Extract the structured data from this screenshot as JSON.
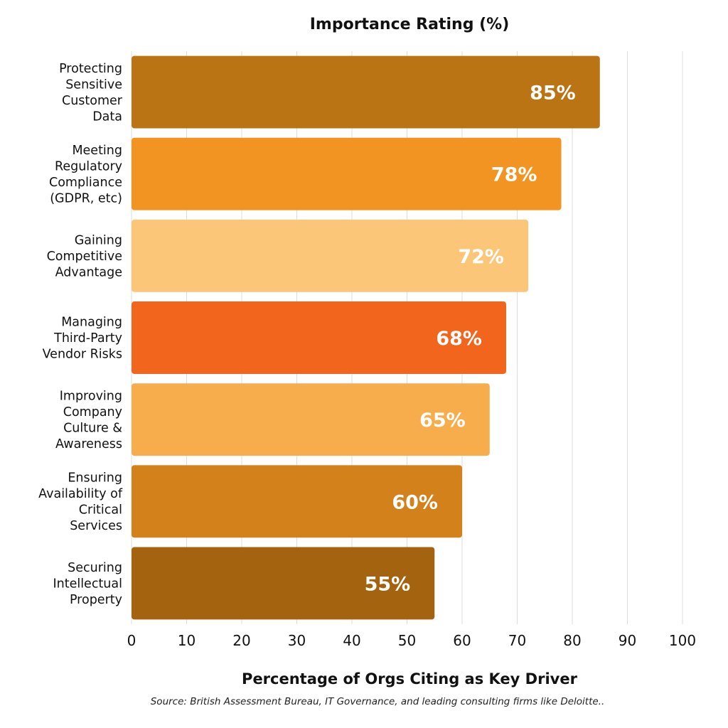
{
  "chart_data": {
    "type": "bar",
    "orientation": "horizontal",
    "title": "Importance Rating (%)",
    "xlabel": "Percentage of Orgs Citing as Key Driver",
    "ylabel": "",
    "xlim": [
      0,
      100
    ],
    "xticks": [
      0,
      10,
      20,
      30,
      40,
      50,
      60,
      70,
      80,
      90,
      100
    ],
    "grid": "vertical",
    "legend": "none",
    "categories": [
      [
        "Protecting",
        "Sensitive",
        "Customer",
        "Data"
      ],
      [
        "Meeting",
        "Regulatory",
        "Compliance",
        "(GDPR, etc)"
      ],
      [
        "Gaining",
        "Competitive",
        "Advantage"
      ],
      [
        "Managing",
        "Third-Party",
        "Vendor Risks"
      ],
      [
        "Improving",
        "Company",
        "Culture &",
        "Awareness"
      ],
      [
        "Ensuring",
        "Availability of",
        "Critical",
        "Services"
      ],
      [
        "Securing",
        "Intellectual",
        "Property"
      ]
    ],
    "values": [
      85,
      78,
      72,
      68,
      65,
      60,
      55
    ],
    "value_labels": [
      "85%",
      "78%",
      "72%",
      "68%",
      "65%",
      "60%",
      "55%"
    ],
    "colors": [
      "#BA7413",
      "#F29421",
      "#FCC679",
      "#F2651D",
      "#F7AD4C",
      "#D2811B",
      "#A4640F"
    ],
    "source": "Source: British Assessment Bureau, IT Governance, and leading consulting firms like Deloitte.."
  }
}
